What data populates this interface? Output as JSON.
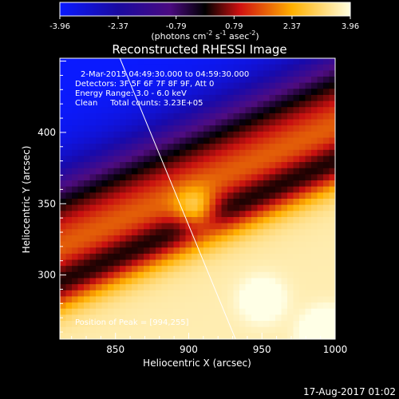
{
  "chart_data": {
    "type": "heatmap",
    "title": "Reconstructed RHESSI Image",
    "xlabel": "Heliocentric X (arcsec)",
    "ylabel": "Heliocentric Y (arcsec)",
    "xlim": [
      812,
      1000
    ],
    "ylim": [
      255,
      452
    ],
    "xticks": [
      850,
      900,
      950,
      1000
    ],
    "yticks": [
      300,
      350,
      400
    ],
    "colorbar": {
      "range": [
        -3.96,
        3.96
      ],
      "tick_labels": [
        "-3.96",
        "-2.37",
        "-0.79",
        "0.79",
        "2.37",
        "3.96"
      ],
      "label_main": "(photons cm",
      "label_exp1": "-2",
      "label_mid": " s",
      "label_exp2": "-1",
      "label_mid2": " asec",
      "label_exp3": "-2",
      "label_end": ")"
    },
    "annotations": [
      "2-Mar-2015 04:49:30.000 to 04:59:30.000",
      "Detectors: 3F 5F 6F 7F 8F 9F, Att 0",
      "Energy Range: 3.0 - 6.0 keV",
      "Clean     Total counts: 3.23E+05"
    ],
    "peak_label": "Position of Peak = [994,255]",
    "peak": [
      994,
      255
    ],
    "sources": [
      {
        "x": 905,
        "y": 345,
        "amplitude": 2.0
      },
      {
        "x": 950,
        "y": 283,
        "amplitude": 1.0
      },
      {
        "x": 994,
        "y": 258,
        "amplitude": 2.2
      }
    ],
    "limb_line": [
      [
        853,
        452
      ],
      [
        932,
        255
      ]
    ],
    "bands": [
      {
        "level": 3.6,
        "offset": -95,
        "width": 155
      },
      {
        "level": -1.0,
        "offset": 40,
        "width": 80
      },
      {
        "level": -3.96,
        "offset": 110,
        "width": 200
      }
    ]
  },
  "footer": {
    "timestamp": "17-Aug-2017 01:02"
  }
}
